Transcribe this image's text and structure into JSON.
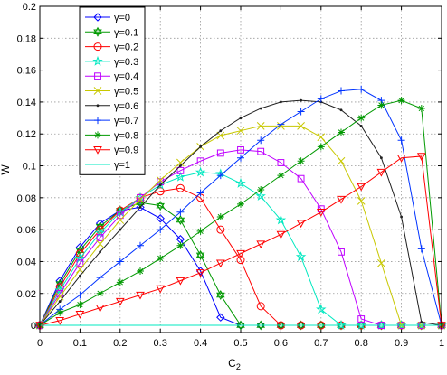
{
  "chart_data": {
    "type": "line",
    "xlabel": "C",
    "xlabel_sub": "2",
    "ylabel": "W",
    "xlim": [
      0,
      1
    ],
    "ylim": [
      -0.0045,
      0.2
    ],
    "xticks": [
      0,
      0.1,
      0.2,
      0.3,
      0.4,
      0.5,
      0.6,
      0.7,
      0.8,
      0.9,
      1
    ],
    "xtick_labels": [
      "0",
      "0.1",
      "0.2",
      "0.3",
      "0.4",
      "0.5",
      "0.6",
      "0.7",
      "0.8",
      "0.9",
      "1"
    ],
    "yticks": [
      0,
      0.02,
      0.04,
      0.06,
      0.08,
      0.1,
      0.12,
      0.14,
      0.16,
      0.18,
      0.2
    ],
    "ytick_labels": [
      "0",
      "0.02",
      "0.04",
      "0.06",
      "0.08",
      "0.1",
      "0.12",
      "0.14",
      "0.16",
      "0.18",
      "0.2"
    ],
    "grid": true,
    "legend_position": "top-left",
    "x": [
      0,
      0.05,
      0.1,
      0.15,
      0.2,
      0.25,
      0.3,
      0.35,
      0.4,
      0.45,
      0.5,
      0.55,
      0.6,
      0.65,
      0.7,
      0.75,
      0.8,
      0.85,
      0.9,
      0.95,
      1
    ],
    "series": [
      {
        "name": "γ=0",
        "color": "#0000ff",
        "marker": "diamond",
        "values": [
          0,
          0.028,
          0.049,
          0.064,
          0.072,
          0.074,
          0.067,
          0.054,
          0.034,
          0.005,
          0,
          0,
          0,
          0,
          0,
          0,
          0,
          0,
          0,
          0,
          0
        ]
      },
      {
        "name": "γ=0.1",
        "color": "#009900",
        "marker": "hexagram",
        "values": [
          0,
          0.026,
          0.047,
          0.062,
          0.072,
          0.077,
          0.075,
          0.066,
          0.044,
          0.019,
          0,
          0,
          0,
          0,
          0,
          0,
          0,
          0,
          0,
          0,
          0
        ]
      },
      {
        "name": "γ=0.2",
        "color": "#ff0000",
        "marker": "circle",
        "values": [
          0,
          0.024,
          0.045,
          0.06,
          0.072,
          0.08,
          0.084,
          0.086,
          0.08,
          0.06,
          0.041,
          0.012,
          0,
          0,
          0,
          0,
          0,
          0,
          0,
          0,
          0
        ]
      },
      {
        "name": "γ=0.3",
        "color": "#00e8c0",
        "marker": "star",
        "values": [
          0,
          0.022,
          0.042,
          0.058,
          0.071,
          0.08,
          0.088,
          0.093,
          0.096,
          0.095,
          0.089,
          0.081,
          0.066,
          0.043,
          0.01,
          0,
          0,
          0,
          0,
          0,
          0
        ]
      },
      {
        "name": "γ=0.4",
        "color": "#bf00ff",
        "marker": "square",
        "values": [
          0,
          0.02,
          0.039,
          0.055,
          0.069,
          0.08,
          0.09,
          0.097,
          0.103,
          0.108,
          0.11,
          0.109,
          0.102,
          0.092,
          0.073,
          0.046,
          0.004,
          0,
          0,
          0,
          0
        ]
      },
      {
        "name": "γ=0.5",
        "color": "#c8c800",
        "marker": "x",
        "values": [
          0,
          0.018,
          0.035,
          0.051,
          0.066,
          0.079,
          0.091,
          0.102,
          0.112,
          0.119,
          0.122,
          0.125,
          0.125,
          0.125,
          0.118,
          0.103,
          0.078,
          0.039,
          0,
          0,
          0
        ]
      },
      {
        "name": "γ=0.6",
        "color": "#202020",
        "marker": "dot",
        "values": [
          0,
          0.015,
          0.031,
          0.046,
          0.06,
          0.074,
          0.088,
          0.1,
          0.112,
          0.122,
          0.13,
          0.136,
          0.14,
          0.141,
          0.14,
          0.135,
          0.125,
          0.105,
          0.068,
          0.002,
          0
        ]
      },
      {
        "name": "γ=0.7",
        "color": "#0033ff",
        "marker": "plus",
        "values": [
          0,
          0.01,
          0.019,
          0.03,
          0.04,
          0.05,
          0.06,
          0.071,
          0.083,
          0.094,
          0.105,
          0.116,
          0.126,
          0.134,
          0.142,
          0.147,
          0.148,
          0.141,
          0.116,
          0.048,
          0
        ]
      },
      {
        "name": "γ=0.8",
        "color": "#009900",
        "marker": "asterisk",
        "values": [
          0,
          0.008,
          0.013,
          0.02,
          0.027,
          0.034,
          0.042,
          0.05,
          0.059,
          0.068,
          0.076,
          0.085,
          0.094,
          0.103,
          0.112,
          0.121,
          0.13,
          0.138,
          0.141,
          0.136,
          0
        ]
      },
      {
        "name": "γ=0.9",
        "color": "#ff0000",
        "marker": "triangle-down",
        "values": [
          0,
          0.003,
          0.007,
          0.011,
          0.015,
          0.019,
          0.023,
          0.028,
          0.033,
          0.039,
          0.045,
          0.051,
          0.057,
          0.064,
          0.071,
          0.079,
          0.087,
          0.096,
          0.105,
          0.106,
          0
        ]
      },
      {
        "name": "γ=1",
        "color": "#00e8c0",
        "marker": "none",
        "values": [
          0,
          0,
          0,
          0,
          0,
          0,
          0,
          0,
          0,
          0,
          0,
          0,
          0,
          0,
          0,
          0,
          0,
          0,
          0,
          0,
          0
        ]
      }
    ]
  }
}
